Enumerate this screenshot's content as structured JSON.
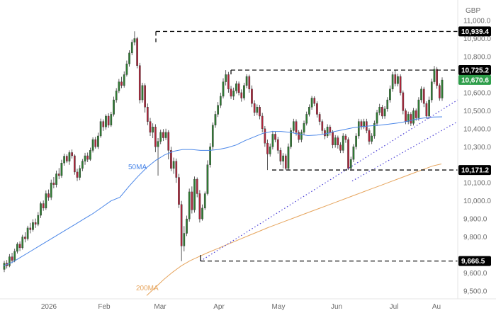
{
  "chart_data": {
    "type": "candlestick",
    "currency_label": "GBP",
    "y_axis": {
      "min": 9500,
      "max": 11000,
      "ticks": [
        9500,
        9600,
        9700,
        9800,
        9900,
        10000,
        10100,
        10200,
        10300,
        10400,
        10500,
        10600,
        10700,
        10800,
        10900,
        11000
      ],
      "tick_labels": [
        "9,500.0",
        "9,600.0",
        "9,700.0",
        "9,800.0",
        "9,900.0",
        "10,000.0",
        "10,100.0",
        "10,200.0",
        "10,300.0",
        "10,400.0",
        "10,500.0",
        "10,600.0",
        "10,700.0",
        "10,800.0",
        "10,900.0",
        "11,000.0"
      ]
    },
    "x_axis": {
      "labels": [
        "2026",
        "Feb",
        "Mar",
        "Apr",
        "May",
        "Jun",
        "Jul",
        "Au"
      ]
    },
    "price_levels": [
      {
        "value": 10939.4,
        "label": "10,939.4",
        "badge_color": "#000000"
      },
      {
        "value": 10725.2,
        "label": "10,725.2",
        "badge_color": "#000000"
      },
      {
        "value": 10670.6,
        "label": "10,670.6",
        "badge_color": "#2e9e4a"
      },
      {
        "value": 10171.2,
        "label": "10,171.2",
        "badge_color": "#000000"
      },
      {
        "value": 9666.5,
        "label": "9,666.5",
        "badge_color": "#000000"
      }
    ],
    "moving_averages": [
      {
        "name": "50MA",
        "color": "#4a86e8"
      },
      {
        "name": "200MA",
        "color": "#e6a45c"
      }
    ],
    "colors": {
      "up": "#2e7d32",
      "down": "#b0243a",
      "trendline": "#4a3fd6"
    },
    "candles": [
      [
        9620,
        9655,
        9605,
        9668
      ],
      [
        9655,
        9640,
        9625,
        9672
      ],
      [
        9640,
        9690,
        9632,
        9705
      ],
      [
        9690,
        9670,
        9655,
        9712
      ],
      [
        9670,
        9720,
        9660,
        9735
      ],
      [
        9720,
        9760,
        9708,
        9770
      ],
      [
        9760,
        9740,
        9722,
        9776
      ],
      [
        9740,
        9800,
        9730,
        9812
      ],
      [
        9800,
        9790,
        9770,
        9826
      ],
      [
        9790,
        9850,
        9780,
        9862
      ],
      [
        9850,
        9840,
        9820,
        9878
      ],
      [
        9840,
        9880,
        9830,
        9898
      ],
      [
        9880,
        9870,
        9850,
        9902
      ],
      [
        9870,
        9920,
        9860,
        9938
      ],
      [
        9920,
        9985,
        9905,
        9996
      ],
      [
        9985,
        9960,
        9945,
        10002
      ],
      [
        9960,
        10040,
        9950,
        10058
      ],
      [
        10040,
        10020,
        10000,
        10063
      ],
      [
        10020,
        10100,
        10005,
        10118
      ],
      [
        10100,
        10090,
        10070,
        10132
      ],
      [
        10090,
        10150,
        10075,
        10168
      ],
      [
        10150,
        10140,
        10120,
        10182
      ],
      [
        10140,
        10210,
        10128,
        10228
      ],
      [
        10210,
        10248,
        10195,
        10262
      ],
      [
        10248,
        10220,
        10210,
        10258
      ],
      [
        10220,
        10268,
        10200,
        10280
      ],
      [
        10268,
        10250,
        10235,
        10285
      ],
      [
        10250,
        10160,
        10145,
        10258
      ],
      [
        10160,
        10130,
        10110,
        10178
      ],
      [
        10130,
        10180,
        10115,
        10198
      ],
      [
        10180,
        10220,
        10165,
        10232
      ],
      [
        10220,
        10250,
        10200,
        10266
      ],
      [
        10250,
        10230,
        10215,
        10268
      ],
      [
        10230,
        10280,
        10222,
        10295
      ],
      [
        10280,
        10340,
        10268,
        10352
      ],
      [
        10340,
        10300,
        10290,
        10355
      ],
      [
        10300,
        10360,
        10288,
        10378
      ],
      [
        10360,
        10440,
        10350,
        10456
      ],
      [
        10440,
        10410,
        10388,
        10452
      ],
      [
        10410,
        10470,
        10395,
        10480
      ],
      [
        10470,
        10420,
        10405,
        10486
      ],
      [
        10420,
        10480,
        10410,
        10494
      ],
      [
        10480,
        10560,
        10468,
        10578
      ],
      [
        10560,
        10610,
        10545,
        10625
      ],
      [
        10610,
        10660,
        10598,
        10676
      ],
      [
        10660,
        10640,
        10625,
        10688
      ],
      [
        10640,
        10700,
        10628,
        10718
      ],
      [
        10700,
        10760,
        10690,
        10778
      ],
      [
        10760,
        10820,
        10745,
        10835
      ],
      [
        10820,
        10880,
        10808,
        10895
      ],
      [
        10880,
        10900,
        10862,
        10940
      ],
      [
        10900,
        10750,
        10735,
        10910
      ],
      [
        10750,
        10560,
        10540,
        10765
      ],
      [
        10560,
        10640,
        10545,
        10655
      ],
      [
        10640,
        10520,
        10490,
        10652
      ],
      [
        10520,
        10440,
        10420,
        10540
      ],
      [
        10440,
        10380,
        10360,
        10460
      ],
      [
        10380,
        10410,
        10348,
        10430
      ],
      [
        10410,
        10300,
        10270,
        10425
      ],
      [
        10300,
        10330,
        10140,
        10348
      ],
      [
        10330,
        10380,
        10315,
        10395
      ],
      [
        10380,
        10350,
        10332,
        10398
      ],
      [
        10350,
        10380,
        10338,
        10400
      ],
      [
        10380,
        10280,
        10230,
        10392
      ],
      [
        10280,
        10180,
        10165,
        10300
      ],
      [
        10180,
        10220,
        10150,
        10240
      ],
      [
        10220,
        10130,
        10100,
        10235
      ],
      [
        10130,
        9980,
        9960,
        10150
      ],
      [
        9980,
        9750,
        9666,
        10000
      ],
      [
        9750,
        9820,
        9720,
        9860
      ],
      [
        9820,
        9900,
        9805,
        9918
      ],
      [
        9900,
        10050,
        9885,
        10068
      ],
      [
        10050,
        9950,
        9930,
        10080
      ],
      [
        9950,
        10120,
        9935,
        10135
      ],
      [
        10120,
        10040,
        10020,
        10130
      ],
      [
        10040,
        9900,
        9880,
        10060
      ],
      [
        9900,
        9960,
        9890,
        9980
      ],
      [
        9960,
        10040,
        9950,
        10052
      ],
      [
        10040,
        10200,
        10030,
        10225
      ],
      [
        10200,
        10300,
        10185,
        10320
      ],
      [
        10300,
        10420,
        10285,
        10435
      ],
      [
        10420,
        10480,
        10405,
        10498
      ],
      [
        10480,
        10530,
        10465,
        10548
      ],
      [
        10530,
        10580,
        10515,
        10600
      ],
      [
        10580,
        10660,
        10568,
        10680
      ],
      [
        10660,
        10700,
        10640,
        10725
      ],
      [
        10700,
        10620,
        10600,
        10715
      ],
      [
        10620,
        10580,
        10565,
        10638
      ],
      [
        10580,
        10610,
        10560,
        10628
      ],
      [
        10610,
        10650,
        10595,
        10665
      ],
      [
        10650,
        10600,
        10585,
        10662
      ],
      [
        10600,
        10570,
        10550,
        10618
      ],
      [
        10570,
        10640,
        10558,
        10655
      ],
      [
        10640,
        10690,
        10625,
        10702
      ],
      [
        10690,
        10620,
        10600,
        10700
      ],
      [
        10620,
        10540,
        10520,
        10640
      ],
      [
        10540,
        10490,
        10470,
        10558
      ],
      [
        10490,
        10520,
        10475,
        10535
      ],
      [
        10520,
        10470,
        10452,
        10532
      ],
      [
        10470,
        10400,
        10380,
        10488
      ],
      [
        10400,
        10320,
        10300,
        10415
      ],
      [
        10320,
        10260,
        10171,
        10340
      ],
      [
        10260,
        10300,
        10245,
        10318
      ],
      [
        10300,
        10370,
        10285,
        10388
      ],
      [
        10370,
        10340,
        10325,
        10385
      ],
      [
        10340,
        10280,
        10262,
        10355
      ],
      [
        10280,
        10220,
        10200,
        10295
      ],
      [
        10220,
        10250,
        10180,
        10265
      ],
      [
        10250,
        10180,
        10171,
        10262
      ],
      [
        10180,
        10300,
        10170,
        10318
      ],
      [
        10300,
        10390,
        10288,
        10405
      ],
      [
        10390,
        10440,
        10378,
        10455
      ],
      [
        10440,
        10380,
        10362,
        10452
      ],
      [
        10380,
        10340,
        10322,
        10392
      ],
      [
        10340,
        10380,
        10325,
        10395
      ],
      [
        10380,
        10430,
        10365,
        10445
      ],
      [
        10430,
        10480,
        10418,
        10495
      ],
      [
        10480,
        10520,
        10468,
        10535
      ],
      [
        10520,
        10570,
        10505,
        10582
      ],
      [
        10570,
        10540,
        10525,
        10580
      ],
      [
        10540,
        10480,
        10462,
        10552
      ],
      [
        10480,
        10440,
        10420,
        10492
      ],
      [
        10440,
        10390,
        10372,
        10452
      ],
      [
        10390,
        10360,
        10342,
        10402
      ],
      [
        10360,
        10410,
        10348,
        10425
      ],
      [
        10410,
        10380,
        10362,
        10422
      ],
      [
        10380,
        10310,
        10292,
        10392
      ],
      [
        10310,
        10350,
        10295,
        10365
      ],
      [
        10350,
        10310,
        10290,
        10362
      ],
      [
        10310,
        10280,
        10265,
        10325
      ],
      [
        10280,
        10360,
        10265,
        10375
      ],
      [
        10360,
        10340,
        10322,
        10372
      ],
      [
        10340,
        10180,
        10171,
        10352
      ],
      [
        10180,
        10230,
        10168,
        10245
      ],
      [
        10230,
        10300,
        10215,
        10315
      ],
      [
        10300,
        10360,
        10285,
        10375
      ],
      [
        10360,
        10440,
        10345,
        10455
      ],
      [
        10440,
        10410,
        10395,
        10452
      ],
      [
        10410,
        10440,
        10398,
        10455
      ],
      [
        10440,
        10390,
        10375,
        10455
      ],
      [
        10390,
        10330,
        10312,
        10402
      ],
      [
        10330,
        10360,
        10315,
        10375
      ],
      [
        10360,
        10430,
        10345,
        10445
      ],
      [
        10430,
        10490,
        10415,
        10505
      ],
      [
        10490,
        10520,
        10475,
        10538
      ],
      [
        10520,
        10470,
        10455,
        10532
      ],
      [
        10470,
        10510,
        10455,
        10525
      ],
      [
        10510,
        10560,
        10495,
        10575
      ],
      [
        10560,
        10620,
        10545,
        10640
      ],
      [
        10620,
        10700,
        10605,
        10715
      ],
      [
        10700,
        10650,
        10635,
        10725
      ],
      [
        10650,
        10690,
        10635,
        10705
      ],
      [
        10690,
        10600,
        10585,
        10702
      ],
      [
        10600,
        10500,
        10480,
        10612
      ],
      [
        10500,
        10440,
        10425,
        10512
      ],
      [
        10440,
        10480,
        10425,
        10495
      ],
      [
        10480,
        10430,
        10415,
        10492
      ],
      [
        10430,
        10500,
        10418,
        10515
      ],
      [
        10500,
        10460,
        10445,
        10512
      ],
      [
        10460,
        10560,
        10445,
        10575
      ],
      [
        10560,
        10620,
        10545,
        10635
      ],
      [
        10620,
        10540,
        10520,
        10632
      ],
      [
        10540,
        10470,
        10455,
        10552
      ],
      [
        10470,
        10560,
        10455,
        10578
      ],
      [
        10560,
        10660,
        10545,
        10678
      ],
      [
        10660,
        10730,
        10648,
        10748
      ],
      [
        10730,
        10640,
        10622,
        10742
      ],
      [
        10640,
        10570,
        10555,
        10652
      ],
      [
        10570,
        10670,
        10555,
        10685
      ]
    ],
    "ma50": [
      10020,
      10080,
      10135,
      10185,
      10225,
      10255,
      10275,
      10285,
      10285,
      10280,
      10280,
      10285,
      10295,
      10310,
      10335,
      10355,
      10375,
      10385,
      10385,
      10380,
      10370,
      10362,
      10365,
      10372,
      10385,
      10395,
      10405,
      10412,
      10416,
      10420,
      10425,
      10432,
      10440,
      10452,
      10460,
      10465,
      10466
    ],
    "ma200": [
      9475,
      9520,
      9565,
      9605,
      9640,
      9668,
      9690,
      9712,
      9732,
      9752,
      9772,
      9792,
      9812,
      9832,
      9852,
      9870,
      9888,
      9906,
      9924,
      9942,
      9960,
      9978,
      9996,
      10014,
      10032,
      10050,
      10068,
      10086,
      10104,
      10122,
      10140,
      10158,
      10176,
      10194,
      10205
    ],
    "trendlines": [
      {
        "from": [
          9666.5
        ],
        "to": [
          10560
        ]
      },
      {
        "from": [
          10110
        ],
        "to": [
          10440
        ]
      }
    ]
  }
}
